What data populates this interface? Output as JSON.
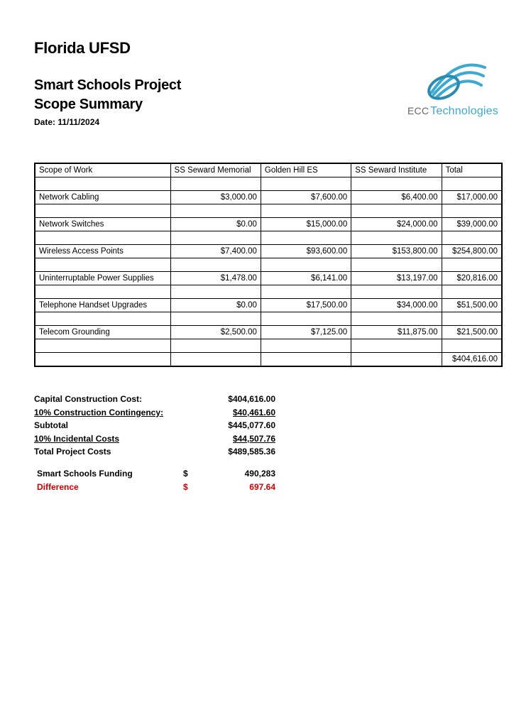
{
  "header": {
    "org": "Florida UFSD",
    "title1": "Smart Schools Project",
    "title2": "Scope Summary",
    "date_label": "Date: 11/11/2024",
    "logo_brand_prefix": "ECC",
    "logo_brand_suffix": "Technologies",
    "logo_color": "#3ba9d1"
  },
  "table": {
    "columns": [
      "Scope of Work",
      "SS Seward Memorial",
      "Golden Hill ES",
      "SS Seward Institute",
      "Total"
    ],
    "rows": [
      {
        "label": "Network Cabling",
        "c1": "$3,000.00",
        "c2": "$7,600.00",
        "c3": "$6,400.00",
        "total": "$17,000.00"
      },
      {
        "label": "Network Switches",
        "c1": "$0.00",
        "c2": "$15,000.00",
        "c3": "$24,000.00",
        "total": "$39,000.00"
      },
      {
        "label": "Wireless Access Points",
        "c1": "$7,400.00",
        "c2": "$93,600.00",
        "c3": "$153,800.00",
        "total": "$254,800.00"
      },
      {
        "label": "Uninterruptable Power Supplies",
        "c1": "$1,478.00",
        "c2": "$6,141.00",
        "c3": "$13,197.00",
        "total": "$20,816.00"
      },
      {
        "label": "Telephone Handset Upgrades",
        "c1": "$0.00",
        "c2": "$17,500.00",
        "c3": "$34,000.00",
        "total": "$51,500.00"
      },
      {
        "label": "Telecom Grounding",
        "c1": "$2,500.00",
        "c2": "$7,125.00",
        "c3": "$11,875.00",
        "total": "$21,500.00"
      }
    ],
    "grand_total": "$404,616.00"
  },
  "summary": {
    "lines": [
      {
        "label": "Capital Construction Cost:",
        "value": "$404,616.00",
        "underline": false
      },
      {
        "label": "10% Construction Contingency:",
        "value": "$40,461.60",
        "underline": true
      },
      {
        "label": "Subtotal",
        "value": "$445,077.60",
        "underline": false
      },
      {
        "label": "10% Incidental Costs",
        "value": "$44,507.76",
        "underline": true
      },
      {
        "label": "Total Project Costs",
        "value": "$489,585.36",
        "underline": false
      }
    ],
    "funding": {
      "label": "Smart Schools Funding",
      "currency": "$",
      "value": "490,283"
    },
    "difference": {
      "label": "Difference",
      "currency": "$",
      "value": "697.64"
    }
  }
}
